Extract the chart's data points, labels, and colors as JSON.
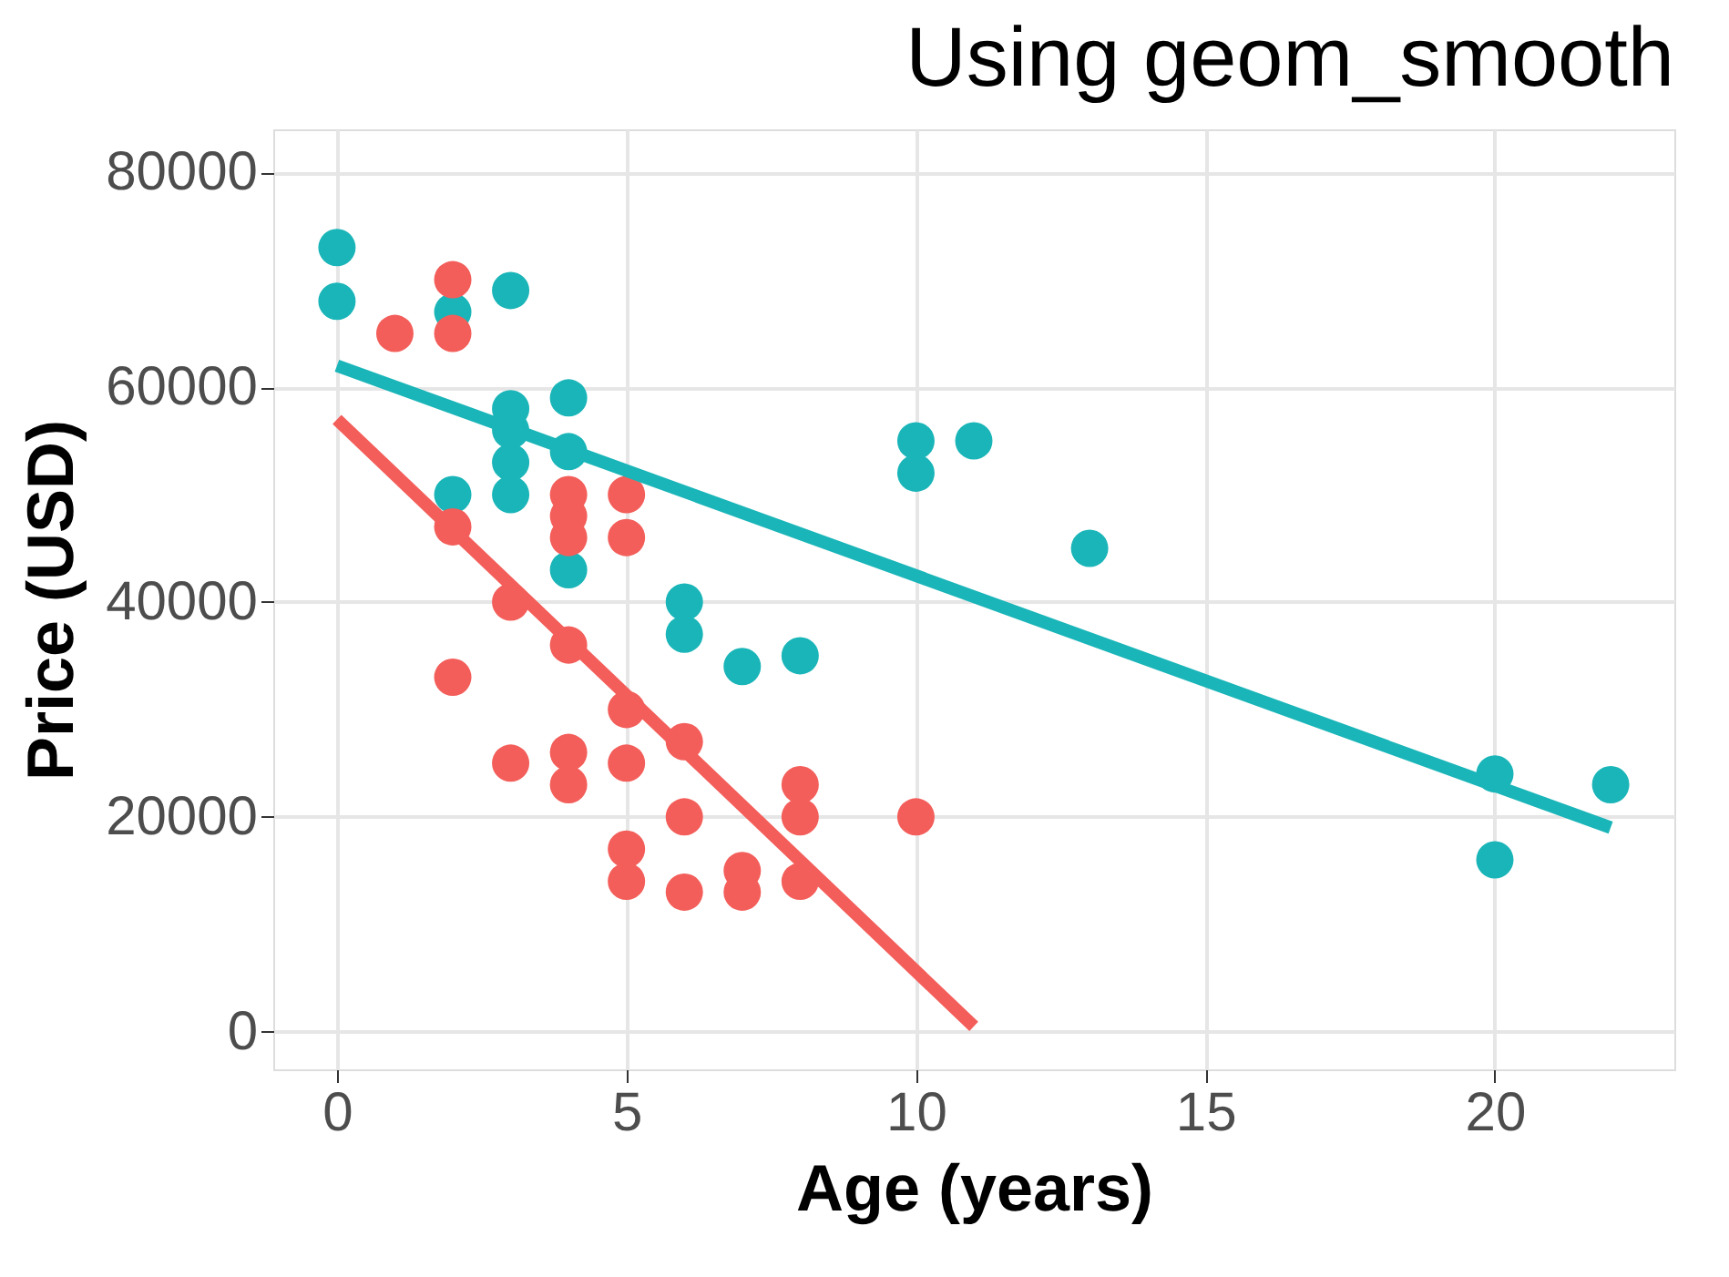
{
  "chart_data": {
    "type": "scatter",
    "title": "Using geom_smooth",
    "xlabel": "Age (years)",
    "ylabel": "Price (USD)",
    "xlim": [
      -1.1,
      23.1
    ],
    "ylim": [
      -3500,
      84000
    ],
    "xticks": [
      0,
      5,
      10,
      15,
      20
    ],
    "yticks": [
      0,
      20000,
      40000,
      60000,
      80000
    ],
    "grid": true,
    "marker": "circle",
    "series": [
      {
        "color": "#1ab5b8",
        "x": [
          0,
          0,
          2,
          2,
          3,
          3,
          3,
          3,
          3,
          4,
          4,
          4,
          6,
          6,
          7,
          8,
          10,
          10,
          11,
          13,
          20,
          20,
          22
        ],
        "values": [
          73000,
          68000,
          67000,
          50000,
          69000,
          58000,
          56000,
          53000,
          50000,
          59000,
          54000,
          43000,
          40000,
          37000,
          34000,
          35000,
          55000,
          52000,
          55000,
          45000,
          24000,
          16000,
          23000
        ]
      },
      {
        "color": "#f35e5a",
        "x": [
          1,
          2,
          2,
          2,
          2,
          3,
          3,
          4,
          4,
          4,
          4,
          4,
          4,
          5,
          5,
          5,
          5,
          5,
          5,
          6,
          6,
          6,
          7,
          7,
          8,
          8,
          8,
          10
        ],
        "values": [
          65000,
          70000,
          65000,
          47000,
          33000,
          40000,
          25000,
          50000,
          48000,
          46000,
          36000,
          26000,
          23000,
          50000,
          46000,
          30000,
          25000,
          17000,
          14000,
          27000,
          20000,
          13000,
          15000,
          13000,
          23000,
          20000,
          14000,
          20000
        ]
      },
      {
        "type": "line",
        "color": "#1ab5b8",
        "marker": "none",
        "line_style": "solid",
        "x": [
          0,
          22
        ],
        "values": [
          62000,
          19000
        ]
      },
      {
        "type": "line",
        "color": "#f35e5a",
        "marker": "none",
        "line_style": "solid",
        "x": [
          0,
          11
        ],
        "values": [
          57000,
          500
        ]
      }
    ]
  }
}
